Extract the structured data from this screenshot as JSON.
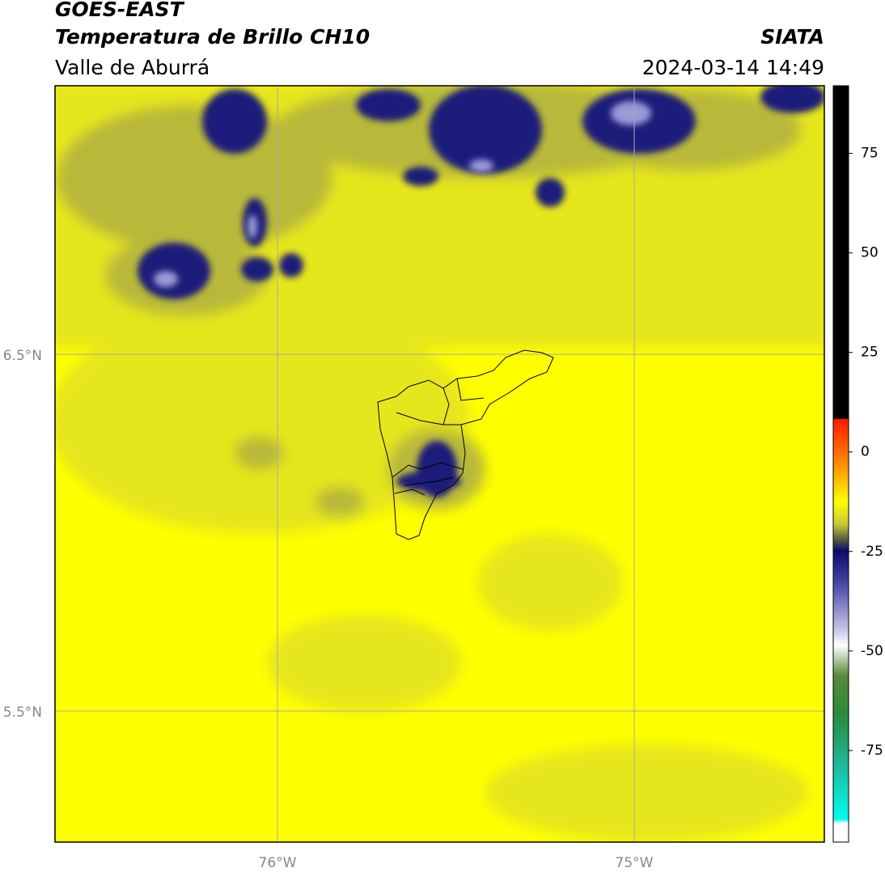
{
  "header": {
    "satellite": "GOES-EAST",
    "product": "Temperatura de Brillo CH10",
    "region": "Valle de Aburrá",
    "source": "SIATA",
    "datetime": "2024-03-14 14:49"
  },
  "map": {
    "lat_labels": [
      "6.5°N",
      "5.5°N"
    ],
    "lon_labels": [
      "76°W",
      "75°W"
    ]
  },
  "colorbar": {
    "range": [
      -98,
      92
    ],
    "ticks": [
      75,
      50,
      25,
      0,
      -25,
      -50,
      -75
    ]
  }
}
